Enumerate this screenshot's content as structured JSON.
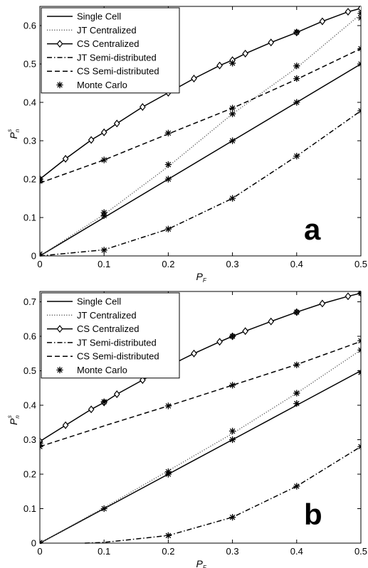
{
  "chart_data": [
    {
      "type": "line",
      "panel_label": "a",
      "xlabel": "P_F",
      "ylabel": "P_n^s",
      "xlim": [
        0,
        0.5
      ],
      "ylim": [
        0,
        0.65
      ],
      "xticks": [
        "0",
        "0.1",
        "0.2",
        "0.3",
        "0.4",
        "0.5"
      ],
      "yticks": [
        "0",
        "0.1",
        "0.2",
        "0.3",
        "0.4",
        "0.5",
        "0.6"
      ],
      "legend_position": "top-left",
      "grid": false,
      "series": [
        {
          "name": "Single Cell",
          "style": "solid",
          "marker": "none",
          "x": [
            0,
            0.1,
            0.2,
            0.3,
            0.4,
            0.5
          ],
          "y": [
            0,
            0.1,
            0.2,
            0.3,
            0.4,
            0.5
          ]
        },
        {
          "name": "JT Centralized",
          "style": "dotted",
          "marker": "none",
          "x": [
            0,
            0.1,
            0.2,
            0.3,
            0.4,
            0.5
          ],
          "y": [
            0,
            0.108,
            0.233,
            0.37,
            0.49,
            0.63
          ]
        },
        {
          "name": "CS Centralized",
          "style": "solid",
          "marker": "diamond",
          "x": [
            0,
            0.04,
            0.08,
            0.1,
            0.12,
            0.16,
            0.2,
            0.24,
            0.28,
            0.3,
            0.32,
            0.36,
            0.4,
            0.44,
            0.48,
            0.5
          ],
          "y": [
            0.2,
            0.253,
            0.302,
            0.322,
            0.345,
            0.388,
            0.425,
            0.462,
            0.496,
            0.51,
            0.527,
            0.556,
            0.582,
            0.611,
            0.636,
            0.645
          ]
        },
        {
          "name": "JT Semi-distributed",
          "style": "dashdot",
          "marker": "none",
          "x": [
            0,
            0.1,
            0.2,
            0.3,
            0.4,
            0.5
          ],
          "y": [
            0,
            0.016,
            0.07,
            0.15,
            0.26,
            0.378
          ]
        },
        {
          "name": "CS Semi-distributed",
          "style": "dashed",
          "marker": "none",
          "x": [
            0,
            0.1,
            0.2,
            0.3,
            0.4,
            0.5
          ],
          "y": [
            0.19,
            0.25,
            0.318,
            0.385,
            0.46,
            0.54
          ]
        },
        {
          "name": "Monte Carlo",
          "style": "none",
          "marker": "asterisk",
          "x": [
            0,
            0,
            0,
            0.1,
            0.1,
            0.1,
            0.1,
            0.2,
            0.2,
            0.2,
            0.2,
            0.3,
            0.3,
            0.3,
            0.3,
            0.3,
            0.4,
            0.4,
            0.4,
            0.4,
            0.4,
            0.5,
            0.5,
            0.5,
            0.5,
            0.5
          ],
          "y": [
            0.005,
            0.195,
            0.2,
            0.113,
            0.105,
            0.25,
            0.015,
            0.2,
            0.238,
            0.32,
            0.07,
            0.3,
            0.37,
            0.385,
            0.502,
            0.15,
            0.4,
            0.495,
            0.462,
            0.583,
            0.26,
            0.5,
            0.62,
            0.54,
            0.632,
            0.378
          ]
        }
      ]
    },
    {
      "type": "line",
      "panel_label": "b",
      "xlabel": "P_F",
      "ylabel": "P_n^s",
      "xlim": [
        0,
        0.5
      ],
      "ylim": [
        0,
        0.73
      ],
      "xticks": [
        "0",
        "0.1",
        "0.2",
        "0.3",
        "0.4",
        "0.5"
      ],
      "yticks": [
        "0",
        "0.1",
        "0.2",
        "0.3",
        "0.4",
        "0.5",
        "0.6",
        "0.7"
      ],
      "legend_position": "top-left",
      "grid": false,
      "series": [
        {
          "name": "Single Cell",
          "style": "solid",
          "marker": "none",
          "x": [
            0,
            0.1,
            0.2,
            0.3,
            0.4,
            0.5
          ],
          "y": [
            0,
            0.1,
            0.2,
            0.3,
            0.4,
            0.5
          ]
        },
        {
          "name": "JT Centralized",
          "style": "dotted",
          "marker": "none",
          "x": [
            0,
            0.1,
            0.2,
            0.3,
            0.4,
            0.5
          ],
          "y": [
            0,
            0.103,
            0.21,
            0.318,
            0.435,
            0.56
          ]
        },
        {
          "name": "CS Centralized",
          "style": "solid",
          "marker": "diamond",
          "x": [
            0,
            0.04,
            0.08,
            0.1,
            0.12,
            0.16,
            0.2,
            0.24,
            0.28,
            0.3,
            0.32,
            0.36,
            0.4,
            0.44,
            0.48,
            0.5
          ],
          "y": [
            0.295,
            0.342,
            0.388,
            0.408,
            0.432,
            0.473,
            0.513,
            0.55,
            0.584,
            0.6,
            0.615,
            0.643,
            0.67,
            0.695,
            0.716,
            0.725
          ]
        },
        {
          "name": "JT Semi-distributed",
          "style": "dashdot",
          "marker": "none",
          "x": [
            0.07,
            0.1,
            0.2,
            0.3,
            0.4,
            0.5
          ],
          "y": [
            0,
            0.002,
            0.022,
            0.075,
            0.165,
            0.28
          ]
        },
        {
          "name": "CS Semi-distributed",
          "style": "dashed",
          "marker": "none",
          "x": [
            0,
            0.1,
            0.2,
            0.3,
            0.4,
            0.5
          ],
          "y": [
            0.28,
            0.34,
            0.398,
            0.458,
            0.518,
            0.585
          ]
        },
        {
          "name": "Monte Carlo",
          "style": "none",
          "marker": "asterisk",
          "x": [
            0,
            0,
            0,
            0.1,
            0.1,
            0.2,
            0.2,
            0.2,
            0.2,
            0.3,
            0.3,
            0.3,
            0.3,
            0.3,
            0.4,
            0.4,
            0.4,
            0.4,
            0.4,
            0.5,
            0.5,
            0.5,
            0.5,
            0.5
          ],
          "y": [
            0.002,
            0.28,
            0.29,
            0.1,
            0.41,
            0.2,
            0.207,
            0.398,
            0.022,
            0.3,
            0.325,
            0.458,
            0.6,
            0.075,
            0.405,
            0.435,
            0.517,
            0.67,
            0.165,
            0.495,
            0.56,
            0.587,
            0.725,
            0.28
          ]
        }
      ]
    }
  ]
}
